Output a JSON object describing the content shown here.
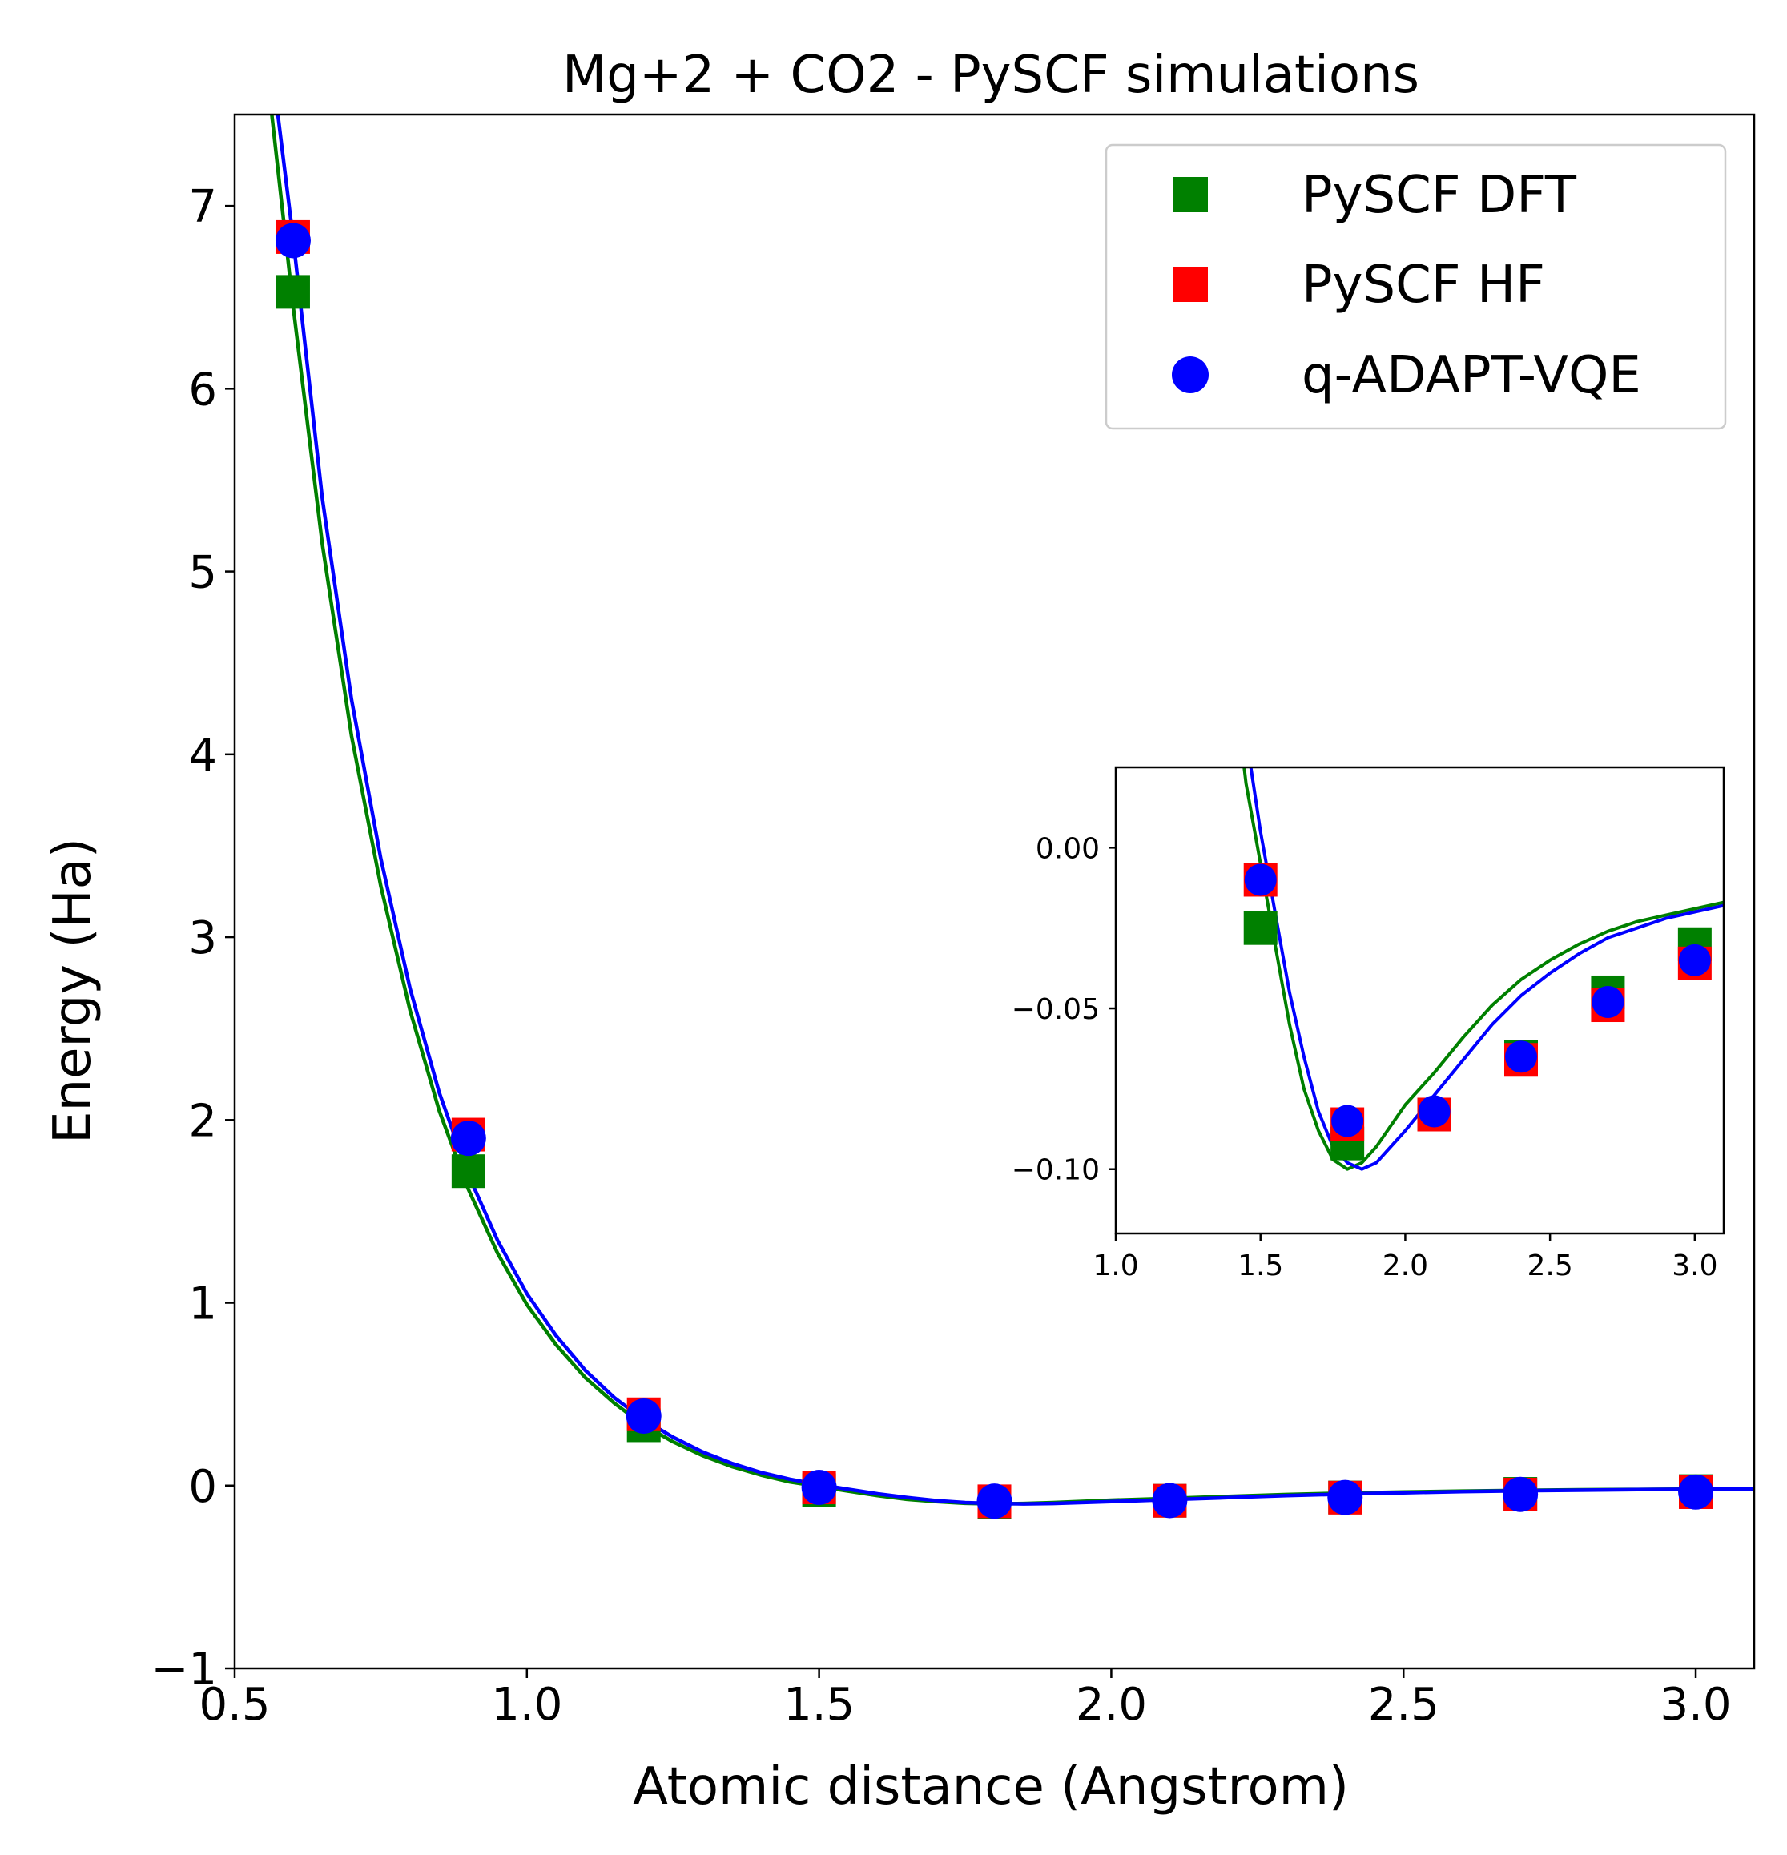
{
  "chart_data": {
    "type": "scatter",
    "title": "Mg+2 + CO2 - PySCF simulations",
    "xlabel": "Atomic distance (Angstrom)",
    "ylabel": "Energy (Ha)",
    "xlim": [
      0.5,
      3.1
    ],
    "ylim": [
      -1,
      7.5
    ],
    "xticks": [
      0.5,
      1.0,
      1.5,
      2.0,
      2.5,
      3.0
    ],
    "xtick_labels": [
      "0.5",
      "1.0",
      "1.5",
      "2.0",
      "2.5",
      "3.0"
    ],
    "yticks": [
      -1,
      0,
      1,
      2,
      3,
      4,
      5,
      6,
      7
    ],
    "ytick_labels": [
      "−1",
      "0",
      "1",
      "2",
      "3",
      "4",
      "5",
      "6",
      "7"
    ],
    "legend_position": "top-right",
    "series": [
      {
        "name": "PySCF DFT",
        "marker": "square",
        "color": "#008000",
        "x": [
          0.6,
          0.9,
          1.2,
          1.5,
          1.8,
          2.1,
          2.4,
          2.7,
          3.0
        ],
        "y": [
          6.53,
          1.72,
          0.33,
          -0.025,
          -0.092,
          -0.083,
          -0.065,
          -0.045,
          -0.03
        ]
      },
      {
        "name": "PySCF HF",
        "marker": "square",
        "color": "#ff0000",
        "x": [
          0.6,
          0.9,
          1.2,
          1.5,
          1.8,
          2.1,
          2.4,
          2.7,
          3.0
        ],
        "y": [
          6.83,
          1.92,
          0.39,
          -0.01,
          -0.086,
          -0.083,
          -0.066,
          -0.049,
          -0.036
        ]
      },
      {
        "name": "q-ADAPT-VQE",
        "marker": "circle",
        "color": "#0000ff",
        "x": [
          0.6,
          0.9,
          1.2,
          1.5,
          1.8,
          2.1,
          2.4,
          2.7,
          3.0
        ],
        "y": [
          6.81,
          1.9,
          0.38,
          -0.01,
          -0.085,
          -0.082,
          -0.065,
          -0.048,
          -0.035
        ]
      }
    ],
    "fit_curves": [
      {
        "color": "#008000",
        "x": [
          0.56,
          0.6,
          0.65,
          0.7,
          0.75,
          0.8,
          0.85,
          0.9,
          0.95,
          1.0,
          1.05,
          1.1,
          1.15,
          1.2,
          1.25,
          1.3,
          1.35,
          1.4,
          1.45,
          1.5,
          1.55,
          1.6,
          1.65,
          1.7,
          1.75,
          1.8,
          1.85,
          1.9,
          2.0,
          2.1,
          2.2,
          2.3,
          2.4,
          2.5,
          2.6,
          2.7,
          2.8,
          2.9,
          3.0,
          3.1
        ],
        "y": [
          7.6,
          6.45,
          5.15,
          4.1,
          3.28,
          2.6,
          2.05,
          1.62,
          1.27,
          0.99,
          0.77,
          0.59,
          0.45,
          0.33,
          0.24,
          0.165,
          0.105,
          0.058,
          0.02,
          -0.005,
          -0.03,
          -0.055,
          -0.075,
          -0.088,
          -0.097,
          -0.1,
          -0.098,
          -0.093,
          -0.08,
          -0.07,
          -0.059,
          -0.049,
          -0.041,
          -0.035,
          -0.03,
          -0.026,
          -0.023,
          -0.021,
          -0.019,
          -0.017
        ]
      },
      {
        "color": "#0000ff",
        "x": [
          0.57,
          0.6,
          0.65,
          0.7,
          0.75,
          0.8,
          0.85,
          0.9,
          0.95,
          1.0,
          1.05,
          1.1,
          1.15,
          1.2,
          1.25,
          1.3,
          1.35,
          1.4,
          1.45,
          1.5,
          1.55,
          1.6,
          1.65,
          1.7,
          1.75,
          1.8,
          1.85,
          1.9,
          2.0,
          2.1,
          2.2,
          2.3,
          2.4,
          2.5,
          2.6,
          2.7,
          2.8,
          2.9,
          3.0,
          3.1
        ],
        "y": [
          7.6,
          6.82,
          5.4,
          4.3,
          3.43,
          2.72,
          2.15,
          1.7,
          1.34,
          1.05,
          0.82,
          0.63,
          0.48,
          0.36,
          0.265,
          0.185,
          0.122,
          0.072,
          0.035,
          0.005,
          -0.02,
          -0.045,
          -0.065,
          -0.082,
          -0.093,
          -0.098,
          -0.1,
          -0.098,
          -0.088,
          -0.077,
          -0.066,
          -0.055,
          -0.046,
          -0.039,
          -0.033,
          -0.028,
          -0.025,
          -0.022,
          -0.02,
          -0.018
        ]
      }
    ],
    "inset": {
      "xlim": [
        1.0,
        3.1
      ],
      "ylim": [
        -0.12,
        0.025
      ],
      "xticks": [
        1.0,
        1.5,
        2.0,
        2.5,
        3.0
      ],
      "xtick_labels": [
        "1.0",
        "1.5",
        "2.0",
        "2.5",
        "3.0"
      ],
      "yticks": [
        0.0,
        -0.05,
        -0.1
      ],
      "ytick_labels": [
        "0.00",
        "−0.05",
        "−0.10"
      ]
    }
  }
}
